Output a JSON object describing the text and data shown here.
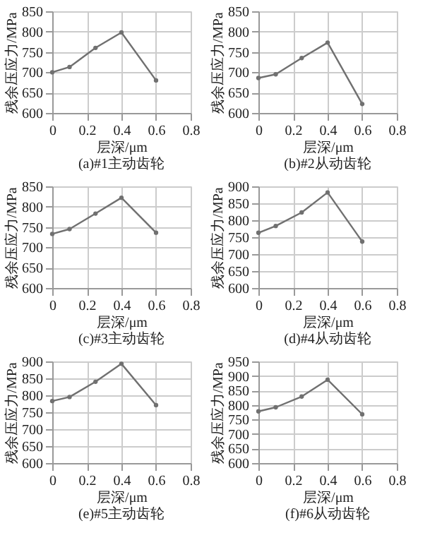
{
  "chart_data": [
    {
      "type": "line",
      "title": "(a)#1主动齿轮",
      "xlabel": "层深/μm",
      "ylabel": "残余压应力/MPa",
      "x": [
        0,
        0.1,
        0.25,
        0.4,
        0.6
      ],
      "series": [
        {
          "color": "#707070",
          "values": [
            700,
            713,
            760,
            798,
            680
          ]
        }
      ],
      "xlim": [
        0,
        0.8
      ],
      "xticks": [
        0,
        0.2,
        0.4,
        0.6,
        0.8
      ],
      "ylim": [
        600,
        850
      ],
      "yticks": [
        600,
        650,
        700,
        750,
        800,
        850
      ],
      "grid": true,
      "marker": "circle",
      "line_style": "solid"
    },
    {
      "type": "line",
      "title": "(b)#2从动齿轮",
      "xlabel": "层深/μm",
      "ylabel": "残余压应力/MPa",
      "x": [
        0,
        0.1,
        0.25,
        0.4,
        0.6
      ],
      "series": [
        {
          "color": "#707070",
          "values": [
            686,
            695,
            735,
            773,
            622
          ]
        }
      ],
      "xlim": [
        0,
        0.8
      ],
      "xticks": [
        0,
        0.2,
        0.4,
        0.6,
        0.8
      ],
      "ylim": [
        600,
        850
      ],
      "yticks": [
        600,
        650,
        700,
        750,
        800,
        850
      ],
      "grid": true,
      "marker": "circle",
      "line_style": "solid"
    },
    {
      "type": "line",
      "title": "(c)#3主动齿轮",
      "xlabel": "层深/μm",
      "ylabel": "残余压应力/MPa",
      "x": [
        0,
        0.1,
        0.25,
        0.4,
        0.6
      ],
      "series": [
        {
          "color": "#707070",
          "values": [
            733,
            745,
            783,
            822,
            736
          ]
        }
      ],
      "xlim": [
        0,
        0.8
      ],
      "xticks": [
        0,
        0.2,
        0.4,
        0.6,
        0.8
      ],
      "ylim": [
        600,
        850
      ],
      "yticks": [
        600,
        650,
        700,
        750,
        800,
        850
      ],
      "grid": true,
      "marker": "circle",
      "line_style": "solid"
    },
    {
      "type": "line",
      "title": "(d)#4从动齿轮",
      "xlabel": "层深/μm",
      "ylabel": "残余压应力/MPa",
      "x": [
        0,
        0.1,
        0.25,
        0.4,
        0.6
      ],
      "series": [
        {
          "color": "#707070",
          "values": [
            763,
            783,
            823,
            882,
            737
          ]
        }
      ],
      "xlim": [
        0,
        0.8
      ],
      "xticks": [
        0,
        0.2,
        0.4,
        0.6,
        0.8
      ],
      "ylim": [
        600,
        900
      ],
      "yticks": [
        600,
        650,
        700,
        750,
        800,
        850,
        900
      ],
      "grid": true,
      "marker": "circle",
      "line_style": "solid"
    },
    {
      "type": "line",
      "title": "(e)#5主动齿轮",
      "xlabel": "层深/μm",
      "ylabel": "残余压应力/MPa",
      "x": [
        0,
        0.1,
        0.25,
        0.4,
        0.6
      ],
      "series": [
        {
          "color": "#707070",
          "values": [
            783,
            795,
            840,
            893,
            771
          ]
        }
      ],
      "xlim": [
        0,
        0.8
      ],
      "xticks": [
        0,
        0.2,
        0.4,
        0.6,
        0.8
      ],
      "ylim": [
        600,
        900
      ],
      "yticks": [
        600,
        650,
        700,
        750,
        800,
        850,
        900
      ],
      "grid": true,
      "marker": "circle",
      "line_style": "solid"
    },
    {
      "type": "line",
      "title": "(f)#6从动齿轮",
      "xlabel": "层深/μm",
      "ylabel": "残余压应力/MPa",
      "x": [
        0,
        0.1,
        0.25,
        0.4,
        0.6
      ],
      "series": [
        {
          "color": "#707070",
          "values": [
            778,
            792,
            829,
            887,
            768
          ]
        }
      ],
      "xlim": [
        0,
        0.8
      ],
      "xticks": [
        0,
        0.2,
        0.4,
        0.6,
        0.8
      ],
      "ylim": [
        600,
        950
      ],
      "yticks": [
        600,
        650,
        700,
        750,
        800,
        850,
        900,
        950
      ],
      "grid": true,
      "marker": "circle",
      "line_style": "solid"
    }
  ]
}
